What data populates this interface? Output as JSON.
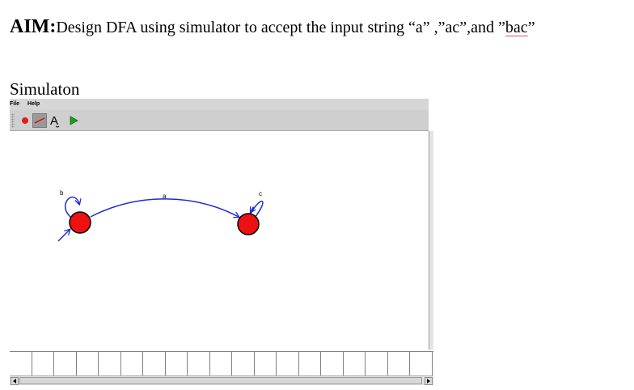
{
  "aim": {
    "label": "AIM:",
    "text_before": "Design DFA  using simulator to accept the input string “a” ,”ac”,and ”",
    "underlined_word": "bac",
    "text_after": "”"
  },
  "section": {
    "heading": "Simulaton"
  },
  "simulator": {
    "menu": {
      "file_label": "File",
      "help_label": "Help"
    },
    "toolbar": {
      "text_tool_glyph": "A",
      "selected_tool": "transition-tool"
    },
    "dfa": {
      "states": [
        "q0",
        "q1"
      ],
      "start_state": "q0",
      "state_color": "#ee1111",
      "edge_color": "#1f2bd1",
      "transitions": [
        {
          "from": "q0",
          "to": "q0",
          "label": "b"
        },
        {
          "from": "q0",
          "to": "q1",
          "label": "a"
        },
        {
          "from": "q1",
          "to": "q1",
          "label": "c"
        }
      ]
    },
    "tape": {
      "cell_count": 19
    }
  },
  "colors": {
    "underline_accent": "#e0457b",
    "toolbar_bg": "#cfcfcf",
    "run_icon": "#19a319"
  }
}
